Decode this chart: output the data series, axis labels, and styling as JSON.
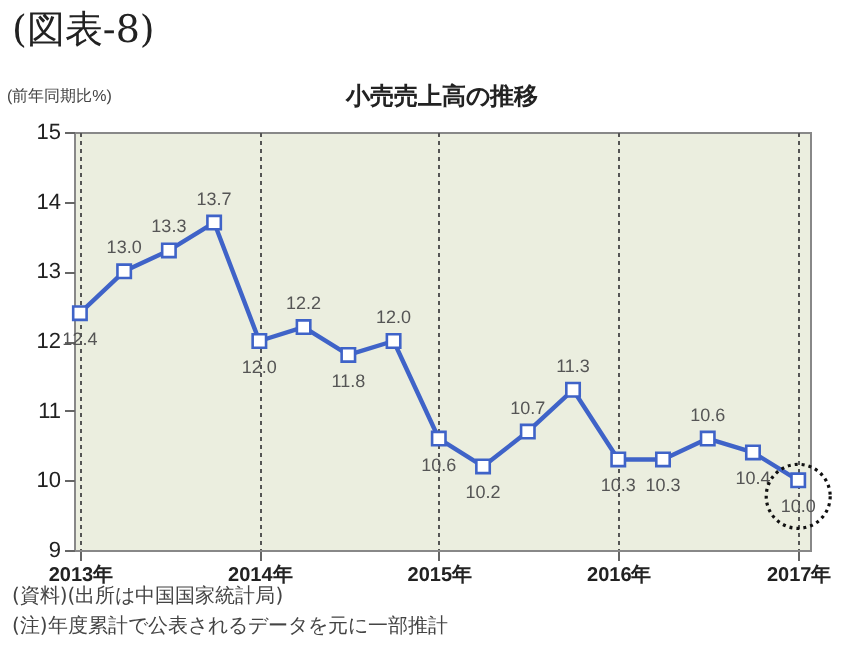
{
  "chart_data": {
    "type": "line",
    "title": "小売売上高の推移",
    "ylabel": "(前年同期比%)",
    "annotations": [
      "(図表-8)",
      "(資料)(出所は中国国家統計局)",
      "(注)年度累計で公表されるデータを元に一部推計"
    ],
    "x": [
      "2013-01",
      "2013-04",
      "2013-07",
      "2013-10",
      "2014-01",
      "2014-04",
      "2014-07",
      "2014-10",
      "2015-01",
      "2015-04",
      "2015-07",
      "2015-10",
      "2016-01",
      "2016-04",
      "2016-07",
      "2016-10",
      "2017-01"
    ],
    "series": [
      {
        "color": "#3f63c8",
        "values": [
          12.4,
          13.0,
          13.3,
          13.7,
          12.0,
          12.2,
          11.8,
          12.0,
          10.6,
          10.2,
          10.7,
          11.3,
          10.3,
          10.3,
          10.6,
          10.4,
          10.0
        ],
        "value_labels": [
          "12.4",
          "13.0",
          "13.3",
          "13.7",
          "12.0",
          "12.2",
          "11.8",
          "12.0",
          "10.6",
          "10.2",
          "10.7",
          "11.3",
          "10.3",
          "10.3",
          "10.6",
          "10.4",
          "10.0"
        ]
      }
    ],
    "marker": "square",
    "line_style": "solid",
    "grid": "x",
    "legend": false,
    "xlim": [
      "2012-12-20",
      "2017-01-25"
    ],
    "xticks": [
      {
        "value": "2013-01-01",
        "label": "2013年"
      },
      {
        "value": "2014-01-01",
        "label": "2014年"
      },
      {
        "value": "2015-01-01",
        "label": "2015年"
      },
      {
        "value": "2016-01-01",
        "label": "2016年"
      },
      {
        "value": "2017-01-01",
        "label": "2017年"
      }
    ],
    "ylim": [
      9,
      15
    ],
    "yticks": [
      9,
      10,
      11,
      12,
      13,
      14,
      15
    ]
  }
}
